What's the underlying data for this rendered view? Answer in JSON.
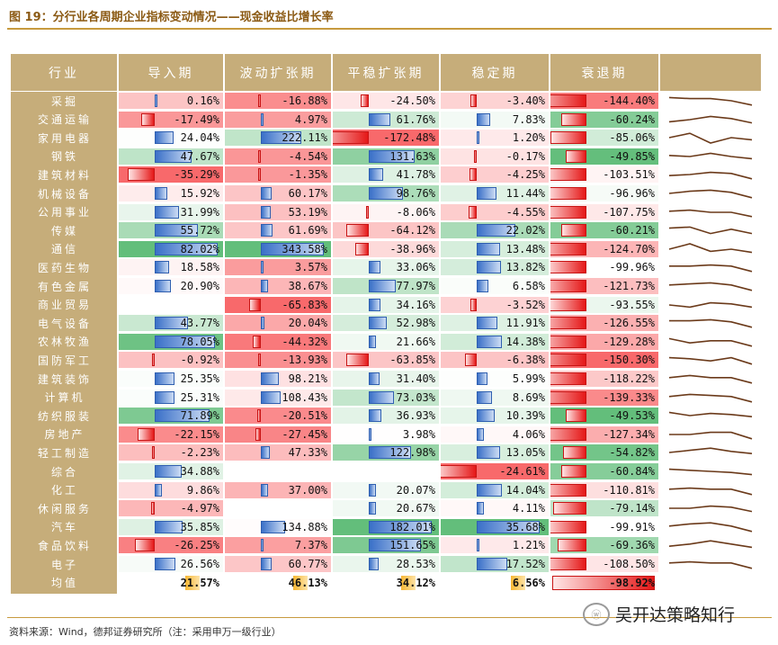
{
  "figure_title": "图 19：分行业各周期企业指标变动情况——现金收益比增长率",
  "source_note": "资料来源：Wind，德邦证券研究所（注：采用申万一级行业）",
  "watermark": "吴开达策略知行",
  "watermark_badge": "ⓦ",
  "colors": {
    "header_bg": "#c6ad7a",
    "label_bg": "#c6ad7a",
    "gold": "#c79a3e",
    "pos_bar": "#3a70c8",
    "neg_bar": "#e51818",
    "spark": "#6b3a1a",
    "avg_gold": "#f7b733"
  },
  "chart_data": {
    "type": "table",
    "title": "分行业各周期企业指标变动情况——现金收益比增长率",
    "unit": "%",
    "columns": [
      "行业",
      "导入期",
      "波动扩张期",
      "平稳扩张期",
      "稳定期",
      "衰退期",
      ""
    ],
    "rows": [
      {
        "industry": "采掘",
        "values": [
          0.16,
          -16.88,
          -24.5,
          -3.4,
          -144.4
        ],
        "display": [
          "0.16%",
          "-16.88%",
          "-24.50%",
          "-3.40%",
          "-144.40%"
        ],
        "trend": [
          0.2,
          0.3,
          0.3,
          0.5,
          0.9
        ]
      },
      {
        "industry": "交通运输",
        "values": [
          -17.49,
          4.97,
          61.76,
          7.83,
          -60.24
        ],
        "display": [
          "-17.49%",
          "4.97%",
          "61.76%",
          "7.83%",
          "-60.24%"
        ],
        "trend": [
          0.7,
          0.5,
          0.2,
          0.4,
          0.8
        ]
      },
      {
        "industry": "家用电器",
        "values": [
          24.04,
          222.11,
          -172.48,
          1.2,
          -85.06
        ],
        "display": [
          "24.04%",
          "222.11%",
          "-172.48%",
          "1.20%",
          "-85.06%"
        ],
        "trend": [
          0.5,
          0.1,
          1.0,
          0.5,
          0.7
        ]
      },
      {
        "industry": "钢铁",
        "values": [
          47.67,
          -4.54,
          131.63,
          -0.17,
          -49.85
        ],
        "display": [
          "47.67%",
          "-4.54%",
          "131.63%",
          "-0.17%",
          "-49.85%"
        ],
        "trend": [
          0.4,
          0.5,
          0.2,
          0.5,
          0.7
        ]
      },
      {
        "industry": "建筑材料",
        "values": [
          -35.29,
          -1.35,
          41.78,
          -4.25,
          -103.51
        ],
        "display": [
          "-35.29%",
          "-1.35%",
          "41.78%",
          "-4.25%",
          "-103.51%"
        ],
        "trend": [
          0.6,
          0.5,
          0.3,
          0.4,
          0.9
        ]
      },
      {
        "industry": "机械设备",
        "values": [
          15.92,
          60.17,
          98.76,
          11.44,
          -96.96
        ],
        "display": [
          "15.92%",
          "60.17%",
          "98.76%",
          "11.44%",
          "-96.96%"
        ],
        "trend": [
          0.5,
          0.3,
          0.2,
          0.4,
          0.9
        ]
      },
      {
        "industry": "公用事业",
        "values": [
          31.99,
          53.19,
          -8.06,
          -4.55,
          -107.75
        ],
        "display": [
          "31.99%",
          "53.19%",
          "-8.06%",
          "-4.55%",
          "-107.75%"
        ],
        "trend": [
          0.4,
          0.3,
          0.5,
          0.5,
          0.9
        ]
      },
      {
        "industry": "传媒",
        "values": [
          55.72,
          61.69,
          -64.12,
          22.02,
          -60.21
        ],
        "display": [
          "55.72%",
          "61.69%",
          "-64.12%",
          "22.02%",
          "-60.21%"
        ],
        "trend": [
          0.3,
          0.2,
          0.8,
          0.4,
          0.8
        ]
      },
      {
        "industry": "通信",
        "values": [
          82.02,
          343.58,
          -38.96,
          13.48,
          -124.7
        ],
        "display": [
          "82.02%",
          "343.58%",
          "-38.96%",
          "13.48%",
          "-124.70%"
        ],
        "trend": [
          0.5,
          0.0,
          0.7,
          0.5,
          0.8
        ]
      },
      {
        "industry": "医药生物",
        "values": [
          18.58,
          3.57,
          33.06,
          13.82,
          -99.96
        ],
        "display": [
          "18.58%",
          "3.57%",
          "33.06%",
          "13.82%",
          "-99.96%"
        ],
        "trend": [
          0.4,
          0.4,
          0.3,
          0.4,
          0.9
        ]
      },
      {
        "industry": "有色金属",
        "values": [
          20.9,
          38.67,
          77.97,
          6.58,
          -121.73
        ],
        "display": [
          "20.90%",
          "38.67%",
          "77.97%",
          "6.58%",
          "-121.73%"
        ],
        "trend": [
          0.4,
          0.3,
          0.2,
          0.4,
          0.9
        ]
      },
      {
        "industry": "商业贸易",
        "values": [
          null,
          -65.83,
          34.16,
          -3.52,
          -93.55
        ],
        "display": [
          "",
          "-65.83%",
          "34.16%",
          "-3.52%",
          "-93.55%"
        ],
        "trend": [
          0.5,
          0.7,
          0.3,
          0.4,
          0.7
        ]
      },
      {
        "industry": "电气设备",
        "values": [
          43.77,
          20.04,
          52.98,
          11.91,
          -126.55
        ],
        "display": [
          "43.77%",
          "20.04%",
          "52.98%",
          "11.91%",
          "-126.55%"
        ],
        "trend": [
          0.3,
          0.3,
          0.2,
          0.4,
          0.9
        ]
      },
      {
        "industry": "农林牧渔",
        "values": [
          78.05,
          -44.32,
          21.66,
          14.38,
          -129.28
        ],
        "display": [
          "78.05%",
          "-44.32%",
          "21.66%",
          "14.38%",
          "-129.28%"
        ],
        "trend": [
          0.2,
          0.6,
          0.4,
          0.4,
          0.9
        ]
      },
      {
        "industry": "国防军工",
        "values": [
          -0.92,
          -13.93,
          -63.85,
          -6.38,
          -150.3
        ],
        "display": [
          "-0.92%",
          "-13.93%",
          "-63.85%",
          "-6.38%",
          "-150.30%"
        ],
        "trend": [
          0.3,
          0.4,
          0.6,
          0.3,
          0.9
        ]
      },
      {
        "industry": "建筑装饰",
        "values": [
          25.35,
          98.21,
          31.4,
          5.99,
          -118.22
        ],
        "display": [
          "25.35%",
          "98.21%",
          "31.40%",
          "5.99%",
          "-118.22%"
        ],
        "trend": [
          0.4,
          0.2,
          0.4,
          0.4,
          0.9
        ]
      },
      {
        "industry": "计算机",
        "values": [
          25.31,
          108.43,
          73.03,
          8.69,
          -139.33
        ],
        "display": [
          "25.31%",
          "108.43%",
          "73.03%",
          "8.69%",
          "-139.33%"
        ],
        "trend": [
          0.4,
          0.2,
          0.3,
          0.4,
          0.9
        ]
      },
      {
        "industry": "纺织服装",
        "values": [
          71.89,
          -20.51,
          36.93,
          10.39,
          -49.53
        ],
        "display": [
          "71.89%",
          "-20.51%",
          "36.93%",
          "10.39%",
          "-49.53%"
        ],
        "trend": [
          0.2,
          0.5,
          0.3,
          0.4,
          0.6
        ]
      },
      {
        "industry": "房地产",
        "values": [
          -22.15,
          -27.45,
          3.98,
          4.06,
          -127.34
        ],
        "display": [
          "-22.15%",
          "-27.45%",
          "3.98%",
          "4.06%",
          "-127.34%"
        ],
        "trend": [
          0.5,
          0.5,
          0.3,
          0.3,
          0.9
        ]
      },
      {
        "industry": "轻工制造",
        "values": [
          -2.23,
          47.33,
          122.98,
          13.05,
          -54.82
        ],
        "display": [
          "-2.23%",
          "47.33%",
          "122.98%",
          "13.05%",
          "-54.82%"
        ],
        "trend": [
          0.5,
          0.3,
          0.1,
          0.4,
          0.6
        ]
      },
      {
        "industry": "综合",
        "values": [
          34.88,
          null,
          null,
          -24.61,
          -60.84
        ],
        "display": [
          "34.88%",
          "",
          "",
          "-24.61%",
          "-60.84%"
        ],
        "trend": [
          0.3,
          0.4,
          0.5,
          0.6,
          0.8
        ]
      },
      {
        "industry": "化工",
        "values": [
          9.86,
          37.0,
          20.07,
          14.04,
          -110.81
        ],
        "display": [
          "9.86%",
          "37.00%",
          "20.07%",
          "14.04%",
          "-110.81%"
        ],
        "trend": [
          0.4,
          0.3,
          0.4,
          0.4,
          0.9
        ]
      },
      {
        "industry": "休闲服务",
        "values": [
          -4.97,
          null,
          20.67,
          4.11,
          -79.14
        ],
        "display": [
          "-4.97%",
          "",
          "20.67%",
          "4.11%",
          "-79.14%"
        ],
        "trend": [
          0.5,
          0.5,
          0.3,
          0.4,
          0.8
        ]
      },
      {
        "industry": "汽车",
        "values": [
          35.85,
          134.88,
          182.01,
          35.68,
          -99.91
        ],
        "display": [
          "35.85%",
          "134.88%",
          "182.01%",
          "35.68%",
          "-99.91%"
        ],
        "trend": [
          0.4,
          0.2,
          0.1,
          0.4,
          0.9
        ]
      },
      {
        "industry": "食品饮料",
        "values": [
          -26.25,
          7.37,
          151.65,
          1.21,
          -69.36
        ],
        "display": [
          "-26.25%",
          "7.37%",
          "151.65%",
          "1.21%",
          "-69.36%"
        ],
        "trend": [
          0.6,
          0.4,
          0.1,
          0.4,
          0.7
        ]
      },
      {
        "industry": "电子",
        "values": [
          26.56,
          60.77,
          28.53,
          17.52,
          -108.5
        ],
        "display": [
          "26.56%",
          "60.77%",
          "28.53%",
          "17.52%",
          "-108.50%"
        ],
        "trend": [
          0.4,
          0.3,
          0.4,
          0.4,
          0.9
        ]
      }
    ],
    "average": {
      "label": "均值",
      "display": [
        "21.57%",
        "46.13%",
        "34.12%",
        "6.56%",
        "-98.92%"
      ],
      "values": [
        21.57,
        46.13,
        34.12,
        6.56,
        -98.92
      ]
    }
  }
}
